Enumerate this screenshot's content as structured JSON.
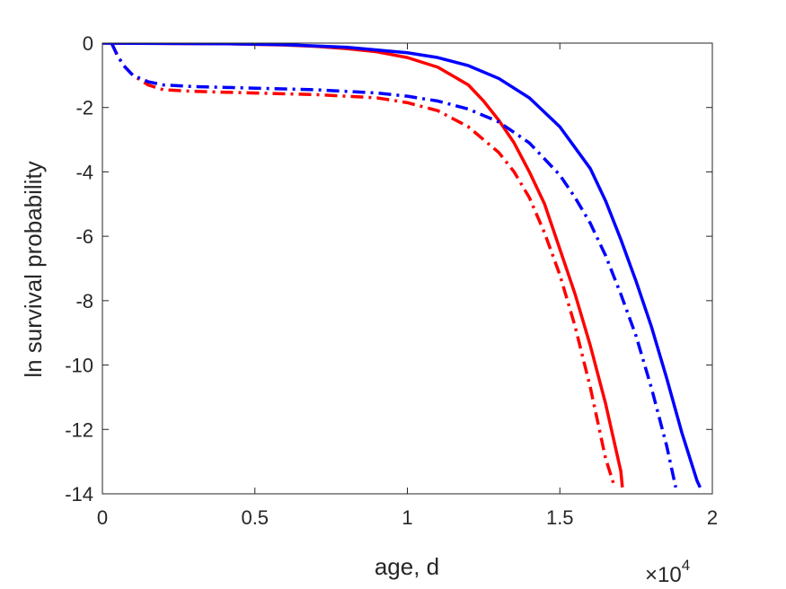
{
  "chart_data": {
    "type": "line",
    "title": "",
    "xlabel": "age, d",
    "ylabel": "ln survival probability",
    "x_exponent": {
      "base": "×10",
      "power": "4"
    },
    "xlim": [
      0,
      20000
    ],
    "ylim": [
      -14,
      0
    ],
    "xticks": [
      0,
      5000,
      10000,
      15000,
      20000
    ],
    "xtick_labels": [
      "0",
      "0.5",
      "1",
      "1.5",
      "2"
    ],
    "yticks": [
      0,
      -2,
      -4,
      -6,
      -8,
      -10,
      -12,
      -14
    ],
    "ytick_labels": [
      "0",
      "-2",
      "-4",
      "-6",
      "-8",
      "-10",
      "-12",
      "-14"
    ],
    "grid": false,
    "series": [
      {
        "color": "#ff0000",
        "style": "solid",
        "x": [
          0,
          2000,
          4000,
          6000,
          7000,
          8000,
          9000,
          10000,
          11000,
          12000,
          12500,
          13000,
          13500,
          14000,
          14500,
          15000,
          15500,
          16000,
          16500,
          17000,
          17050
        ],
        "y": [
          0,
          -0.01,
          -0.02,
          -0.06,
          -0.1,
          -0.17,
          -0.27,
          -0.45,
          -0.75,
          -1.3,
          -1.8,
          -2.4,
          -3.1,
          -4.0,
          -5.0,
          -6.4,
          -7.8,
          -9.4,
          -11.2,
          -13.3,
          -13.8
        ]
      },
      {
        "color": "#0000ff",
        "style": "solid",
        "x": [
          0,
          2000,
          4000,
          6000,
          8000,
          10000,
          11000,
          12000,
          13000,
          14000,
          15000,
          16000,
          16500,
          17000,
          17500,
          18000,
          18500,
          19000,
          19500,
          19600
        ],
        "y": [
          0,
          -0.01,
          -0.02,
          -0.05,
          -0.13,
          -0.3,
          -0.45,
          -0.7,
          -1.1,
          -1.7,
          -2.6,
          -3.9,
          -4.9,
          -6.1,
          -7.4,
          -8.8,
          -10.4,
          -12.1,
          -13.6,
          -13.8
        ]
      },
      {
        "color": "#ff0000",
        "style": "dashdot",
        "x": [
          300,
          500,
          700,
          1000,
          1500,
          2000,
          3000,
          5000,
          7000,
          9000,
          10000,
          11000,
          12000,
          13000,
          13500,
          14000,
          14500,
          15000,
          15500,
          16000,
          16500,
          16800
        ],
        "y": [
          0,
          -0.4,
          -0.7,
          -1.0,
          -1.3,
          -1.45,
          -1.5,
          -1.55,
          -1.6,
          -1.7,
          -1.85,
          -2.1,
          -2.6,
          -3.4,
          -4.0,
          -4.8,
          -5.9,
          -7.2,
          -8.8,
          -10.7,
          -12.9,
          -13.8
        ]
      },
      {
        "color": "#0000ff",
        "style": "dashdot",
        "x": [
          300,
          500,
          700,
          1000,
          1500,
          2000,
          3000,
          5000,
          7000,
          9000,
          10000,
          11000,
          12000,
          13000,
          14000,
          15000,
          15500,
          16000,
          16500,
          17000,
          17500,
          18000,
          18500,
          18800
        ],
        "y": [
          0,
          -0.4,
          -0.7,
          -1.0,
          -1.2,
          -1.3,
          -1.35,
          -1.4,
          -1.45,
          -1.55,
          -1.65,
          -1.8,
          -2.05,
          -2.45,
          -3.1,
          -4.1,
          -4.8,
          -5.6,
          -6.6,
          -7.8,
          -9.1,
          -10.7,
          -12.5,
          -13.8
        ]
      }
    ]
  }
}
